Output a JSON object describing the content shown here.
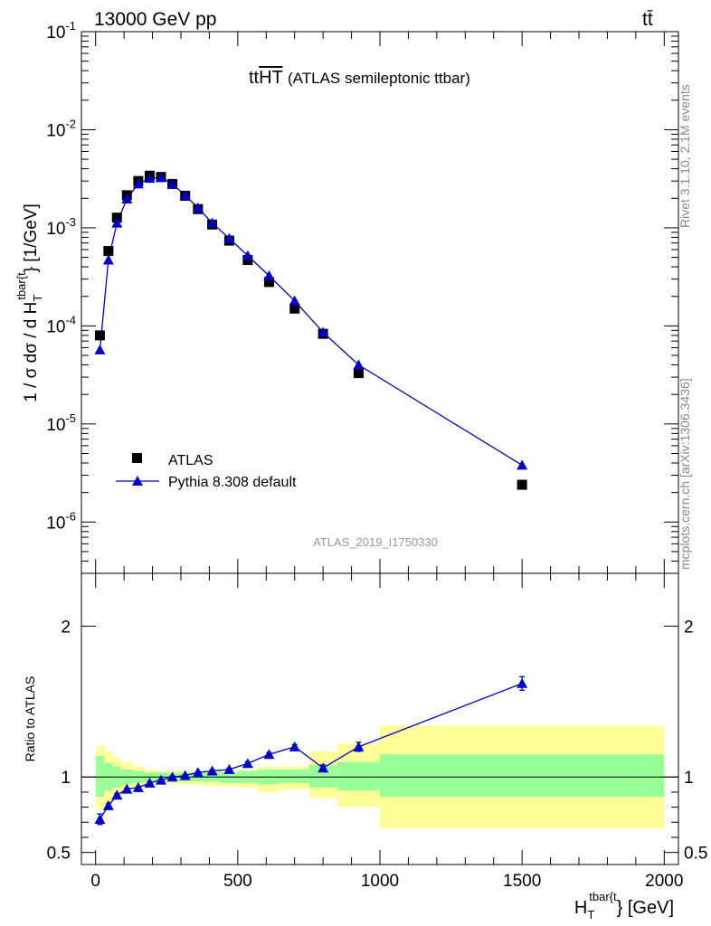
{
  "header": {
    "left": "13000 GeV pp",
    "right": "tt̄"
  },
  "side_labels": {
    "rivet": "Rivet 3.1.10,  2.1M events",
    "mcplots": "mcplots.cern.ch [arXiv:1306.3436]"
  },
  "plot_title": {
    "main": "tt",
    "overline": "HT",
    "sub": "(ATLAS semileptonic ttbar)"
  },
  "analysis_id": "ATLAS_2019_I1750330",
  "colors": {
    "data": "#000000",
    "mc": "#0000cc",
    "band_inner": "#99ff99",
    "band_outer": "#ffff99"
  },
  "chart_data": [
    {
      "type": "scatter",
      "panel": "main",
      "ylabel_parts": {
        "prefix": "1 / σ dσ / d H",
        "sub": "T",
        "sup": "tbar{t",
        "suffix": "} [1/GeV]"
      },
      "yscale": "log",
      "ylim": [
        3e-07,
        0.1
      ],
      "xlim": [
        -50,
        2050
      ],
      "y_ticks": [
        {
          "v": 0.1,
          "m": "10",
          "e": "-1"
        },
        {
          "v": 0.01,
          "m": "10",
          "e": "-2"
        },
        {
          "v": 0.001,
          "m": "10",
          "e": "-3"
        },
        {
          "v": 0.0001,
          "m": "10",
          "e": "-4"
        },
        {
          "v": 1e-05,
          "m": "10",
          "e": "-5"
        },
        {
          "v": 1e-06,
          "m": "10",
          "e": "-6"
        }
      ],
      "legend_position": "lower-left",
      "series": [
        {
          "name": "ATLAS",
          "marker": "square",
          "x": [
            15,
            45,
            75,
            110,
            150,
            190,
            230,
            270,
            315,
            360,
            410,
            470,
            535,
            610,
            700,
            800,
            925,
            1500
          ],
          "y": [
            8e-05,
            0.00058,
            0.00127,
            0.00215,
            0.003,
            0.0034,
            0.0033,
            0.0028,
            0.00212,
            0.00155,
            0.00108,
            0.00074,
            0.00047,
            0.00028,
            0.00015,
            8.3e-05,
            3.3e-05,
            2.4e-06
          ]
        },
        {
          "name": "Pythia 8.308 default",
          "marker": "triangle",
          "x": [
            15,
            45,
            75,
            110,
            150,
            190,
            230,
            270,
            315,
            360,
            410,
            470,
            535,
            610,
            700,
            800,
            925,
            1500
          ],
          "y": [
            5.7e-05,
            0.00047,
            0.00112,
            0.00197,
            0.0028,
            0.0032,
            0.00325,
            0.0028,
            0.00214,
            0.0016,
            0.00112,
            0.00078,
            0.00052,
            0.000325,
            0.00018,
            8.6e-05,
            4e-05,
            3.8e-06
          ]
        }
      ]
    },
    {
      "type": "scatter",
      "panel": "ratio",
      "ylabel": "Ratio to ATLAS",
      "xlabel_parts": {
        "prefix": "H",
        "sub": "T",
        "sup": "tbar{t",
        "suffix": "} [GeV]"
      },
      "xlim": [
        -50,
        2050
      ],
      "ylim": [
        0.42,
        2.35
      ],
      "x_ticks": [
        0,
        500,
        1000,
        1500,
        2000
      ],
      "y_ticks": [
        0.5,
        1,
        2
      ],
      "bins": [
        [
          0,
          30,
          0.87,
          1.14,
          0.79,
          1.21
        ],
        [
          30,
          60,
          0.91,
          1.09,
          0.83,
          1.17
        ],
        [
          60,
          90,
          0.93,
          1.07,
          0.87,
          1.13
        ],
        [
          90,
          130,
          0.95,
          1.05,
          0.9,
          1.1
        ],
        [
          130,
          170,
          0.96,
          1.04,
          0.93,
          1.07
        ],
        [
          170,
          210,
          0.97,
          1.03,
          0.95,
          1.05
        ],
        [
          210,
          250,
          0.97,
          1.03,
          0.95,
          1.04
        ],
        [
          250,
          290,
          0.97,
          1.03,
          0.95,
          1.04
        ],
        [
          290,
          340,
          0.97,
          1.03,
          0.95,
          1.04
        ],
        [
          340,
          380,
          0.97,
          1.03,
          0.95,
          1.04
        ],
        [
          380,
          440,
          0.97,
          1.03,
          0.94,
          1.04
        ],
        [
          440,
          500,
          0.96,
          1.03,
          0.94,
          1.04
        ],
        [
          500,
          570,
          0.96,
          1.04,
          0.93,
          1.05
        ],
        [
          570,
          650,
          0.95,
          1.05,
          0.9,
          1.07
        ],
        [
          650,
          750,
          0.96,
          1.05,
          0.92,
          1.07
        ],
        [
          750,
          850,
          0.93,
          1.08,
          0.86,
          1.17
        ],
        [
          850,
          1000,
          0.91,
          1.1,
          0.8,
          1.22
        ],
        [
          1000,
          2000,
          0.87,
          1.15,
          0.66,
          1.34
        ]
      ],
      "series": [
        {
          "name": "Pythia 8.308 default",
          "x": [
            15,
            45,
            75,
            110,
            150,
            190,
            230,
            270,
            315,
            360,
            410,
            470,
            535,
            610,
            700,
            800,
            925,
            1500
          ],
          "y": [
            0.72,
            0.81,
            0.88,
            0.92,
            0.93,
            0.96,
            0.98,
            1.0,
            1.01,
            1.03,
            1.04,
            1.05,
            1.09,
            1.15,
            1.2,
            1.06,
            1.2,
            1.62
          ],
          "err": [
            0.035,
            0.015,
            0.01,
            0.008,
            0.007,
            0.007,
            0.007,
            0.007,
            0.007,
            0.007,
            0.007,
            0.008,
            0.01,
            0.012,
            0.015,
            0.02,
            0.03,
            0.045
          ]
        }
      ]
    }
  ]
}
